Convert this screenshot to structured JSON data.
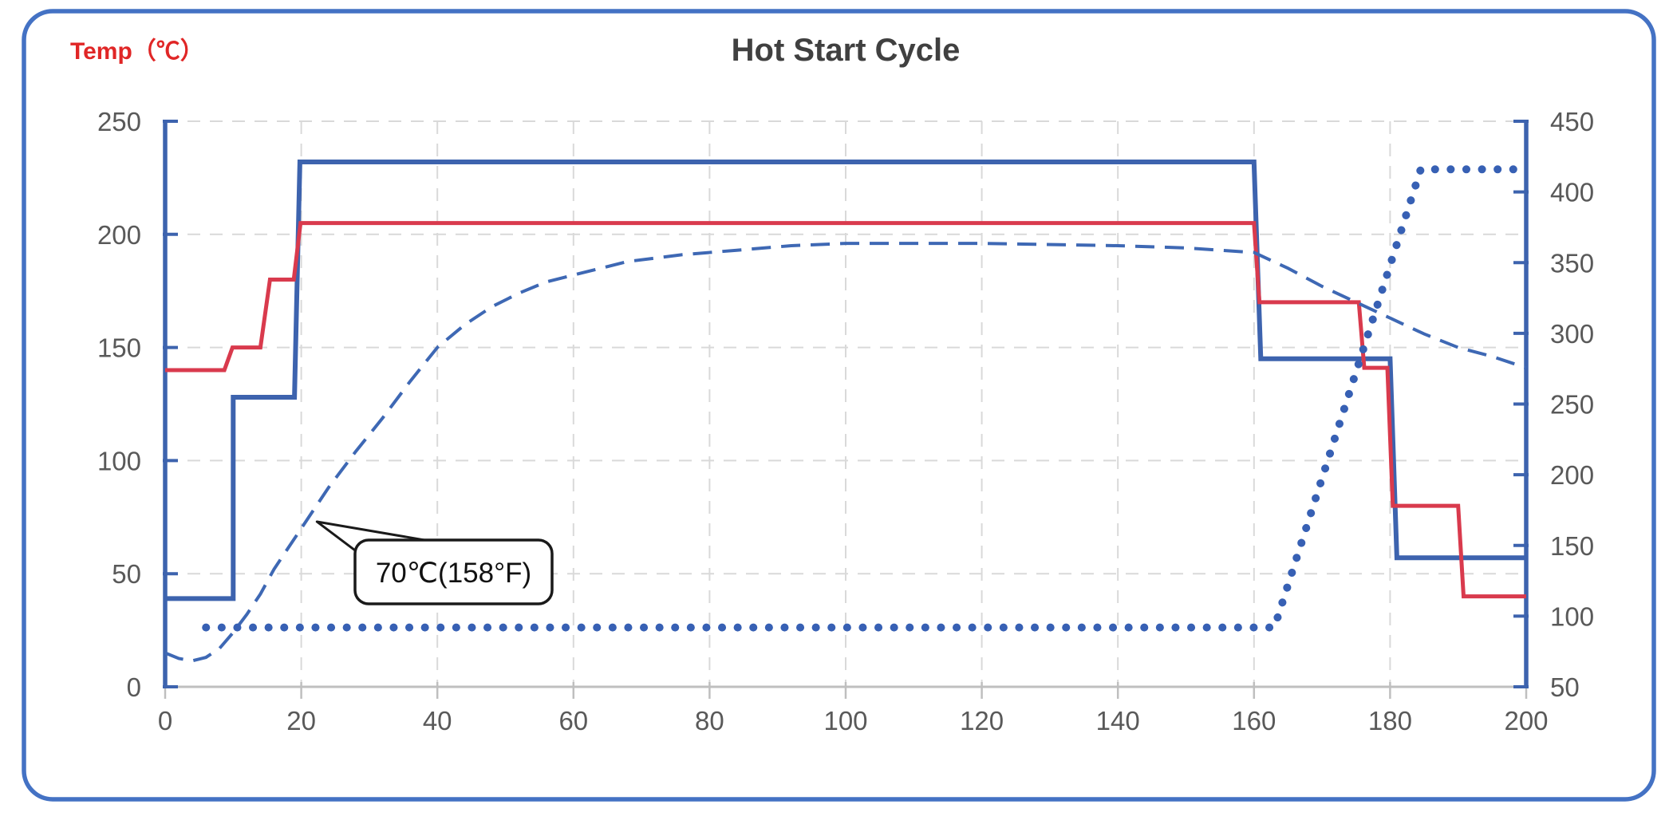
{
  "title": "Hot Start Cycle",
  "axis_label_left": "Temp（℃）",
  "colors": {
    "axis_blue": "#3D63AE",
    "series_blue": "#3D63AE",
    "series_blue_dashed": "#3E68B4",
    "series_blue_dotted": "#3760B4",
    "series_red": "#D93A4D",
    "label_red": "#E02626",
    "title_gray": "#404040",
    "tick_gray": "#595959",
    "grid_gray": "#D9D9D9",
    "x_axis_gray": "#BFBFBF",
    "callout_stroke": "#1a1a1a",
    "figure_border": "#4472C4"
  },
  "chart_data": {
    "type": "line",
    "title": "Hot Start Cycle",
    "legend": "none",
    "grid": {
      "horizontal_left_values": [
        50,
        100,
        150,
        200,
        250
      ],
      "vertical_x_values": [
        20,
        40,
        60,
        80,
        100,
        120,
        140,
        160,
        180,
        200
      ]
    },
    "x_axis": {
      "min": 0,
      "max": 200,
      "ticks": [
        0,
        20,
        40,
        60,
        80,
        100,
        120,
        140,
        160,
        180,
        200
      ]
    },
    "y_left_axis": {
      "label": "Temp（℃）",
      "min": 0,
      "max": 250,
      "ticks": [
        0,
        50,
        100,
        150,
        200,
        250
      ]
    },
    "y_right_axis": {
      "min": 50,
      "max": 450,
      "ticks": [
        50,
        100,
        150,
        200,
        250,
        300,
        350,
        400,
        450
      ]
    },
    "series": [
      {
        "name": "blue-solid-step-profile",
        "axis": "left",
        "style": "solid",
        "color": "#3D63AE",
        "width": 6,
        "points": [
          [
            0,
            39
          ],
          [
            10,
            39
          ],
          [
            10,
            128
          ],
          [
            19,
            128
          ],
          [
            19.8,
            232
          ],
          [
            160,
            232
          ],
          [
            161,
            145
          ],
          [
            180,
            145
          ],
          [
            181,
            57
          ],
          [
            200,
            57
          ]
        ]
      },
      {
        "name": "red-solid-step-profile",
        "axis": "left",
        "style": "solid",
        "color": "#D93A4D",
        "width": 5,
        "points": [
          [
            0,
            140
          ],
          [
            8.7,
            140
          ],
          [
            9.9,
            150
          ],
          [
            14,
            150
          ],
          [
            15.4,
            180
          ],
          [
            18.9,
            180
          ],
          [
            19.9,
            205
          ],
          [
            160,
            205
          ],
          [
            160.8,
            170
          ],
          [
            175.4,
            170
          ],
          [
            176.2,
            141
          ],
          [
            179.6,
            141
          ],
          [
            180.4,
            80
          ],
          [
            190,
            80
          ],
          [
            190.8,
            40
          ],
          [
            200,
            40
          ]
        ]
      },
      {
        "name": "blue-dashed-temperature-curve",
        "axis": "left",
        "style": "dashed",
        "color": "#3E68B4",
        "width": 4,
        "points": [
          [
            0,
            15
          ],
          [
            2,
            12.5
          ],
          [
            4,
            11.5
          ],
          [
            6,
            13
          ],
          [
            8,
            17
          ],
          [
            10,
            24
          ],
          [
            12,
            32
          ],
          [
            14,
            41
          ],
          [
            16,
            52
          ],
          [
            18,
            61
          ],
          [
            20,
            70
          ],
          [
            24,
            88
          ],
          [
            28,
            104
          ],
          [
            32,
            119
          ],
          [
            36,
            135
          ],
          [
            40,
            150
          ],
          [
            44,
            160
          ],
          [
            48,
            168
          ],
          [
            52,
            174
          ],
          [
            56,
            179
          ],
          [
            60,
            182
          ],
          [
            68,
            188
          ],
          [
            76,
            191
          ],
          [
            84,
            193
          ],
          [
            92,
            195
          ],
          [
            100,
            196
          ],
          [
            120,
            196
          ],
          [
            140,
            195
          ],
          [
            150,
            194
          ],
          [
            155,
            193
          ],
          [
            160,
            192
          ],
          [
            165,
            185
          ],
          [
            170,
            177
          ],
          [
            175,
            170
          ],
          [
            180,
            163
          ],
          [
            185,
            156
          ],
          [
            190,
            150
          ],
          [
            195,
            146
          ],
          [
            200,
            141
          ]
        ]
      },
      {
        "name": "blue-dotted-step-curve",
        "axis": "right",
        "style": "dotted",
        "color": "#3760B4",
        "width": 10,
        "points": [
          [
            6,
            92
          ],
          [
            163,
            92
          ],
          [
            184.5,
            416
          ],
          [
            200,
            416
          ]
        ]
      }
    ],
    "annotation": {
      "text": "70℃(158°F)",
      "target": [
        22.3,
        73
      ],
      "box_topleft": [
        27.9,
        64.9
      ]
    }
  }
}
